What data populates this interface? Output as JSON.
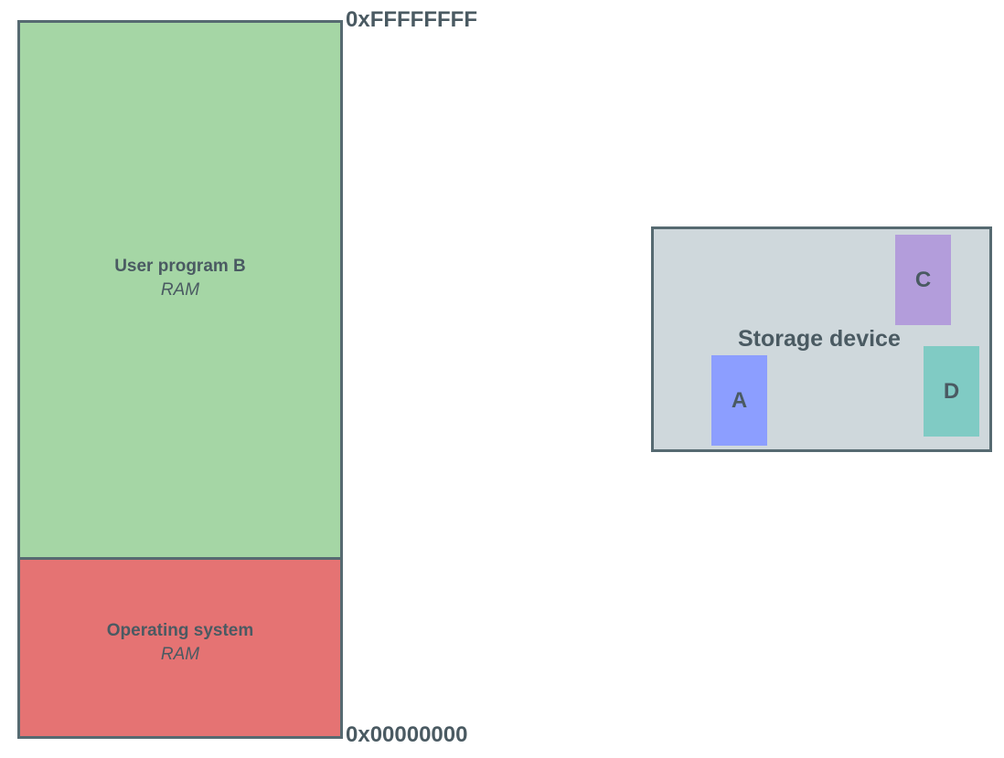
{
  "memory": {
    "user_region": {
      "title": "User program B",
      "subtitle": "RAM",
      "color": "#a5d6a5"
    },
    "os_region": {
      "title": "Operating system",
      "subtitle": "RAM",
      "color": "#e57373"
    },
    "address_top": "0xFFFFFFFF",
    "address_bottom": "0x00000000"
  },
  "storage": {
    "label": "Storage device",
    "color": "#cfd8dc",
    "blocks": [
      {
        "label": "A",
        "color": "#8c9eff"
      },
      {
        "label": "C",
        "color": "#b39ddb"
      },
      {
        "label": "D",
        "color": "#80cbc4"
      }
    ]
  }
}
